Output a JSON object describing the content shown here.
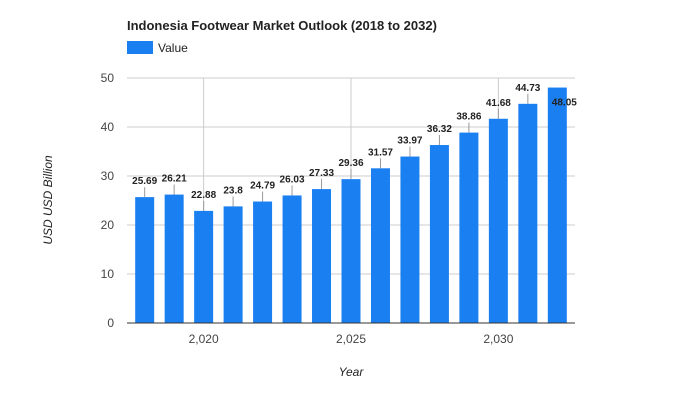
{
  "chart_data": {
    "type": "bar",
    "title": "Indonesia Footwear Market Outlook (2018 to 2032)",
    "legend": {
      "position": "top-left",
      "entries": [
        "Value"
      ]
    },
    "xlabel": "Year",
    "ylabel": "USD USD Billion",
    "x": [
      2018,
      2019,
      2020,
      2021,
      2022,
      2023,
      2024,
      2025,
      2026,
      2027,
      2028,
      2029,
      2030,
      2031,
      2032
    ],
    "series": [
      {
        "name": "Value",
        "color": "#1a7ff0",
        "values": [
          25.69,
          26.21,
          22.88,
          23.8,
          24.79,
          26.03,
          27.33,
          29.36,
          31.57,
          33.97,
          36.32,
          38.86,
          41.68,
          44.73,
          48.05
        ]
      }
    ],
    "data_labels": [
      "25.69",
      "26.21",
      "22.88",
      "23.8",
      "24.79",
      "26.03",
      "27.33",
      "29.36",
      "31.57",
      "33.97",
      "36.32",
      "38.86",
      "41.68",
      "44.73",
      "48.05"
    ],
    "ylim": [
      0,
      50
    ],
    "yticks": [
      0,
      10,
      20,
      30,
      40,
      50
    ],
    "xticks": [
      2020,
      2025,
      2030
    ],
    "xtick_labels": [
      "2,020",
      "2,025",
      "2,030"
    ],
    "grid": true
  }
}
